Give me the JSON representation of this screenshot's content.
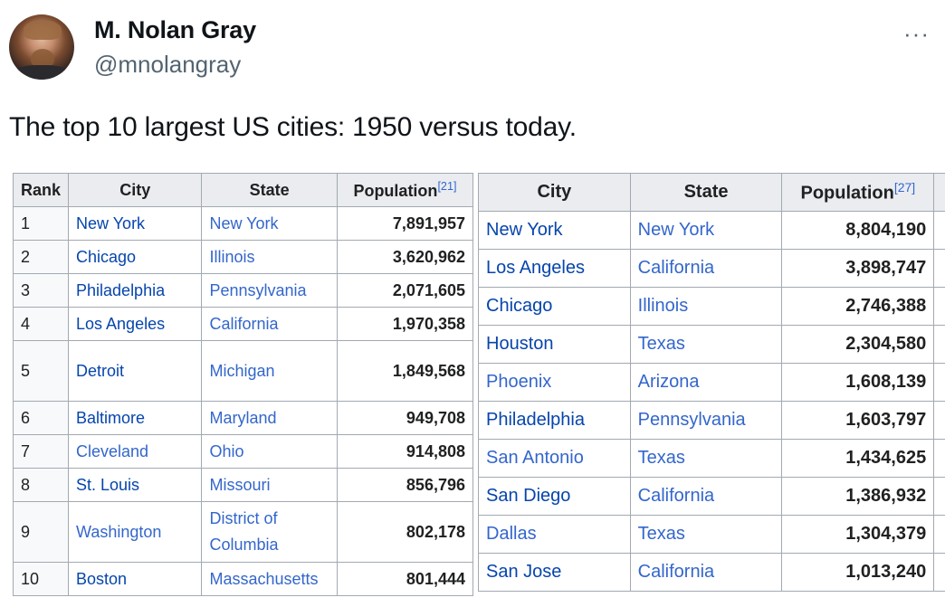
{
  "post": {
    "author_name": "M. Nolan Gray",
    "author_handle": "@mnolangray",
    "more_label": "···",
    "text": "The top 10 largest US cities: 1950 versus today."
  },
  "table_1950": {
    "headers": {
      "rank": "Rank",
      "city": "City",
      "state": "State",
      "population": "Population",
      "population_ref": "[21]"
    },
    "rows": [
      {
        "rank": "1",
        "city": "New York",
        "state": "New York",
        "population": "7,891,957"
      },
      {
        "rank": "2",
        "city": "Chicago",
        "state": "Illinois",
        "population": "3,620,962"
      },
      {
        "rank": "3",
        "city": "Philadelphia",
        "state": "Pennsylvania",
        "population": "2,071,605"
      },
      {
        "rank": "4",
        "city": "Los Angeles",
        "state": "California",
        "population": "1,970,358"
      },
      {
        "rank": "5",
        "city": "Detroit",
        "state": "Michigan",
        "population": "1,849,568"
      },
      {
        "rank": "6",
        "city": "Baltimore",
        "state": "Maryland",
        "population": "949,708"
      },
      {
        "rank": "7",
        "city": "Cleveland",
        "state": "Ohio",
        "population": "914,808"
      },
      {
        "rank": "8",
        "city": "St. Louis",
        "state": "Missouri",
        "population": "856,796"
      },
      {
        "rank": "9",
        "city": "Washington",
        "state": "District of Columbia",
        "population": "802,178"
      },
      {
        "rank": "10",
        "city": "Boston",
        "state": "Massachusetts",
        "population": "801,444"
      }
    ]
  },
  "table_today": {
    "headers": {
      "city": "City",
      "state": "State",
      "population": "Population",
      "population_ref": "[27]"
    },
    "rows": [
      {
        "city": "New York",
        "state": "New York",
        "population": "8,804,190"
      },
      {
        "city": "Los Angeles",
        "state": "California",
        "population": "3,898,747"
      },
      {
        "city": "Chicago",
        "state": "Illinois",
        "population": "2,746,388"
      },
      {
        "city": "Houston",
        "state": "Texas",
        "population": "2,304,580"
      },
      {
        "city": "Phoenix",
        "state": "Arizona",
        "population": "1,608,139"
      },
      {
        "city": "Philadelphia",
        "state": "Pennsylvania",
        "population": "1,603,797"
      },
      {
        "city": "San Antonio",
        "state": "Texas",
        "population": "1,434,625"
      },
      {
        "city": "San Diego",
        "state": "California",
        "population": "1,386,932"
      },
      {
        "city": "Dallas",
        "state": "Texas",
        "population": "1,304,379"
      },
      {
        "city": "San Jose",
        "state": "California",
        "population": "1,013,240"
      }
    ]
  },
  "colors": {
    "link": "#0645ad",
    "link_light": "#3366cc",
    "header_bg": "#eaecf0",
    "border": "#a2a9b1",
    "handle_gray": "#536471"
  },
  "icons": {
    "avatar": "avatar-photo",
    "more": "more-options-icon"
  }
}
